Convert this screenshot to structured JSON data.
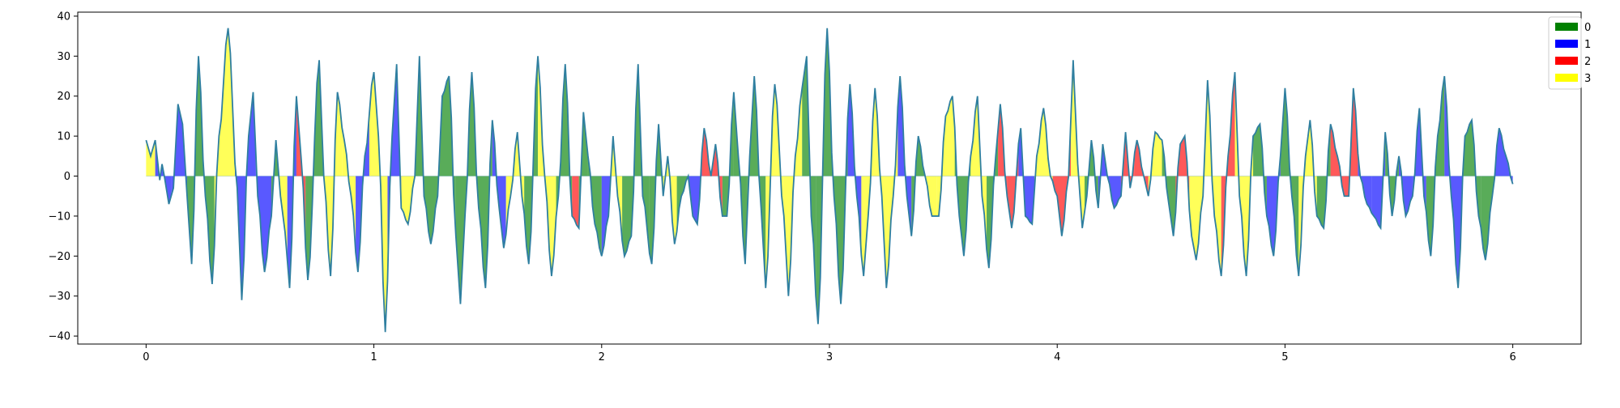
{
  "chart_data": {
    "type": "area",
    "title": "",
    "xlabel": "",
    "ylabel": "",
    "xlim": [
      -0.3,
      6.3
    ],
    "ylim": [
      -42,
      41
    ],
    "xticks": [
      0,
      1,
      2,
      3,
      4,
      5,
      6
    ],
    "yticks": [
      -40,
      -30,
      -20,
      -10,
      0,
      10,
      20,
      30,
      40
    ],
    "xtick_labels": [
      "0",
      "1",
      "2",
      "3",
      "4",
      "5",
      "6"
    ],
    "ytick_labels": [
      "−40",
      "−30",
      "−20",
      "−10",
      "0",
      "10",
      "20",
      "30",
      "40"
    ],
    "grid": false,
    "legend_position": "top-right",
    "line_color": "#2f7fa0",
    "fill_opacity": 0.65,
    "x_start": 0,
    "x_step": 0.01,
    "series": [
      {
        "name": "0",
        "color": "#008000"
      },
      {
        "name": "1",
        "color": "#0000ff"
      },
      {
        "name": "2",
        "color": "#ff0000"
      },
      {
        "name": "3",
        "color": "#ffff00"
      }
    ],
    "curve_peaks": [
      [
        0.0,
        9
      ],
      [
        0.02,
        5
      ],
      [
        0.04,
        9
      ],
      [
        0.06,
        -1
      ],
      [
        0.07,
        3
      ],
      [
        0.08,
        0
      ],
      [
        0.1,
        -7
      ],
      [
        0.12,
        -3
      ],
      [
        0.14,
        18
      ],
      [
        0.16,
        13
      ],
      [
        0.18,
        -5
      ],
      [
        0.2,
        -22
      ],
      [
        0.23,
        30
      ],
      [
        0.26,
        -5
      ],
      [
        0.29,
        -27
      ],
      [
        0.32,
        10
      ],
      [
        0.36,
        37
      ],
      [
        0.4,
        -3
      ],
      [
        0.42,
        -31
      ],
      [
        0.45,
        10
      ],
      [
        0.47,
        21
      ],
      [
        0.49,
        -5
      ],
      [
        0.52,
        -24
      ],
      [
        0.55,
        -10
      ],
      [
        0.57,
        9
      ],
      [
        0.59,
        -5
      ],
      [
        0.61,
        -14
      ],
      [
        0.63,
        -28
      ],
      [
        0.66,
        20
      ],
      [
        0.68,
        5
      ],
      [
        0.71,
        -26
      ],
      [
        0.76,
        29
      ],
      [
        0.78,
        0
      ],
      [
        0.81,
        -25
      ],
      [
        0.84,
        21
      ],
      [
        0.87,
        9
      ],
      [
        0.9,
        -5
      ],
      [
        0.93,
        -24
      ],
      [
        0.96,
        5
      ],
      [
        1.0,
        26
      ],
      [
        1.02,
        10
      ],
      [
        1.05,
        -39
      ],
      [
        1.08,
        10
      ],
      [
        1.1,
        28
      ],
      [
        1.12,
        -8
      ],
      [
        1.15,
        -12
      ],
      [
        1.18,
        0
      ],
      [
        1.2,
        30
      ],
      [
        1.22,
        -5
      ],
      [
        1.25,
        -17
      ],
      [
        1.28,
        -5
      ],
      [
        1.3,
        20
      ],
      [
        1.33,
        25
      ],
      [
        1.36,
        -15
      ],
      [
        1.38,
        -32
      ],
      [
        1.4,
        -10
      ],
      [
        1.43,
        26
      ],
      [
        1.46,
        -8
      ],
      [
        1.49,
        -28
      ],
      [
        1.52,
        14
      ],
      [
        1.55,
        -8
      ],
      [
        1.57,
        -18
      ],
      [
        1.6,
        -5
      ],
      [
        1.63,
        11
      ],
      [
        1.65,
        -5
      ],
      [
        1.68,
        -22
      ],
      [
        1.72,
        30
      ],
      [
        1.75,
        0
      ],
      [
        1.78,
        -25
      ],
      [
        1.81,
        -5
      ],
      [
        1.84,
        28
      ],
      [
        1.87,
        -10
      ],
      [
        1.9,
        -13
      ],
      [
        1.92,
        16
      ],
      [
        1.94,
        5
      ],
      [
        1.97,
        -12
      ],
      [
        2.0,
        -20
      ],
      [
        2.03,
        -10
      ],
      [
        2.05,
        10
      ],
      [
        2.07,
        -5
      ],
      [
        2.1,
        -20
      ],
      [
        2.13,
        -15
      ],
      [
        2.16,
        28
      ],
      [
        2.18,
        -5
      ],
      [
        2.22,
        -22
      ],
      [
        2.25,
        13
      ],
      [
        2.27,
        -5
      ],
      [
        2.29,
        5
      ],
      [
        2.32,
        -17
      ],
      [
        2.35,
        -5
      ],
      [
        2.38,
        0
      ],
      [
        2.4,
        -10
      ],
      [
        2.42,
        -12
      ],
      [
        2.45,
        12
      ],
      [
        2.48,
        0
      ],
      [
        2.5,
        8
      ],
      [
        2.53,
        -10
      ],
      [
        2.55,
        -10
      ],
      [
        2.58,
        21
      ],
      [
        2.6,
        5
      ],
      [
        2.63,
        -22
      ],
      [
        2.65,
        5
      ],
      [
        2.67,
        25
      ],
      [
        2.7,
        -8
      ],
      [
        2.72,
        -28
      ],
      [
        2.76,
        23
      ],
      [
        2.8,
        -10
      ],
      [
        2.82,
        -30
      ],
      [
        2.85,
        5
      ],
      [
        2.88,
        22
      ],
      [
        2.9,
        30
      ],
      [
        2.92,
        -10
      ],
      [
        2.95,
        -37
      ],
      [
        2.99,
        37
      ],
      [
        3.02,
        -5
      ],
      [
        3.05,
        -32
      ],
      [
        3.09,
        23
      ],
      [
        3.12,
        -5
      ],
      [
        3.15,
        -25
      ],
      [
        3.17,
        -10
      ],
      [
        3.2,
        22
      ],
      [
        3.23,
        -5
      ],
      [
        3.25,
        -28
      ],
      [
        3.28,
        -5
      ],
      [
        3.31,
        25
      ],
      [
        3.34,
        -5
      ],
      [
        3.36,
        -15
      ],
      [
        3.39,
        10
      ],
      [
        3.42,
        0
      ],
      [
        3.45,
        -10
      ],
      [
        3.48,
        -10
      ],
      [
        3.51,
        15
      ],
      [
        3.54,
        20
      ],
      [
        3.57,
        -10
      ],
      [
        3.59,
        -20
      ],
      [
        3.62,
        5
      ],
      [
        3.65,
        20
      ],
      [
        3.67,
        -5
      ],
      [
        3.7,
        -23
      ],
      [
        3.73,
        5
      ],
      [
        3.75,
        18
      ],
      [
        3.78,
        -5
      ],
      [
        3.8,
        -13
      ],
      [
        3.84,
        12
      ],
      [
        3.86,
        -10
      ],
      [
        3.89,
        -12
      ],
      [
        3.91,
        5
      ],
      [
        3.94,
        17
      ],
      [
        3.97,
        0
      ],
      [
        4.0,
        -5
      ],
      [
        4.02,
        -15
      ],
      [
        4.05,
        0
      ],
      [
        4.07,
        29
      ],
      [
        4.09,
        3
      ],
      [
        4.11,
        -13
      ],
      [
        4.13,
        -5
      ],
      [
        4.15,
        9
      ],
      [
        4.18,
        -8
      ],
      [
        4.2,
        8
      ],
      [
        4.22,
        0
      ],
      [
        4.25,
        -8
      ],
      [
        4.28,
        -5
      ],
      [
        4.3,
        11
      ],
      [
        4.32,
        -3
      ],
      [
        4.35,
        9
      ],
      [
        4.38,
        0
      ],
      [
        4.4,
        -5
      ],
      [
        4.43,
        11
      ],
      [
        4.46,
        9
      ],
      [
        4.49,
        -7
      ],
      [
        4.51,
        -15
      ],
      [
        4.54,
        8
      ],
      [
        4.56,
        10
      ],
      [
        4.59,
        -15
      ],
      [
        4.61,
        -21
      ],
      [
        4.64,
        -5
      ],
      [
        4.66,
        24
      ],
      [
        4.69,
        -10
      ],
      [
        4.72,
        -25
      ],
      [
        4.75,
        5
      ],
      [
        4.78,
        26
      ],
      [
        4.8,
        -5
      ],
      [
        4.83,
        -25
      ],
      [
        4.86,
        10
      ],
      [
        4.89,
        13
      ],
      [
        4.92,
        -10
      ],
      [
        4.95,
        -20
      ],
      [
        4.98,
        5
      ],
      [
        5.0,
        22
      ],
      [
        5.03,
        -5
      ],
      [
        5.06,
        -25
      ],
      [
        5.09,
        5
      ],
      [
        5.11,
        14
      ],
      [
        5.14,
        -10
      ],
      [
        5.17,
        -13
      ],
      [
        5.2,
        13
      ],
      [
        5.23,
        5
      ],
      [
        5.26,
        -5
      ],
      [
        5.28,
        -5
      ],
      [
        5.3,
        22
      ],
      [
        5.33,
        0
      ],
      [
        5.36,
        -7
      ],
      [
        5.39,
        -10
      ],
      [
        5.42,
        -13
      ],
      [
        5.44,
        11
      ],
      [
        5.47,
        -10
      ],
      [
        5.5,
        5
      ],
      [
        5.53,
        -10
      ],
      [
        5.56,
        -5
      ],
      [
        5.59,
        17
      ],
      [
        5.61,
        -5
      ],
      [
        5.64,
        -20
      ],
      [
        5.67,
        10
      ],
      [
        5.7,
        25
      ],
      [
        5.73,
        -5
      ],
      [
        5.76,
        -28
      ],
      [
        5.79,
        10
      ],
      [
        5.82,
        14
      ],
      [
        5.85,
        -10
      ],
      [
        5.88,
        -21
      ],
      [
        5.91,
        -5
      ],
      [
        5.94,
        12
      ],
      [
        5.97,
        5
      ],
      [
        6.0,
        -2
      ]
    ],
    "segments": [
      [
        0.0,
        0.04,
        3
      ],
      [
        0.04,
        0.11,
        1
      ],
      [
        0.11,
        0.18,
        1
      ],
      [
        0.18,
        0.3,
        0
      ],
      [
        0.3,
        0.39,
        3
      ],
      [
        0.39,
        0.48,
        1
      ],
      [
        0.48,
        0.55,
        1
      ],
      [
        0.55,
        0.58,
        0
      ],
      [
        0.58,
        0.62,
        3
      ],
      [
        0.62,
        0.66,
        1
      ],
      [
        0.66,
        0.7,
        2
      ],
      [
        0.7,
        0.78,
        0
      ],
      [
        0.78,
        0.86,
        3
      ],
      [
        0.86,
        0.92,
        3
      ],
      [
        0.92,
        0.98,
        1
      ],
      [
        0.98,
        1.06,
        3
      ],
      [
        1.06,
        1.12,
        1
      ],
      [
        1.12,
        1.18,
        3
      ],
      [
        1.18,
        1.27,
        0
      ],
      [
        1.27,
        1.36,
        0
      ],
      [
        1.36,
        1.45,
        0
      ],
      [
        1.45,
        1.52,
        0
      ],
      [
        1.52,
        1.58,
        1
      ],
      [
        1.58,
        1.66,
        3
      ],
      [
        1.66,
        1.72,
        0
      ],
      [
        1.72,
        1.8,
        3
      ],
      [
        1.8,
        1.87,
        0
      ],
      [
        1.87,
        1.9,
        2
      ],
      [
        1.9,
        1.94,
        0
      ],
      [
        1.94,
        2.0,
        0
      ],
      [
        2.0,
        2.04,
        1
      ],
      [
        2.04,
        2.09,
        3
      ],
      [
        2.09,
        2.15,
        0
      ],
      [
        2.15,
        2.21,
        0
      ],
      [
        2.21,
        2.27,
        0
      ],
      [
        2.27,
        2.33,
        3
      ],
      [
        2.33,
        2.38,
        0
      ],
      [
        2.38,
        2.44,
        1
      ],
      [
        2.44,
        2.53,
        2
      ],
      [
        2.53,
        2.58,
        0
      ],
      [
        2.58,
        2.64,
        0
      ],
      [
        2.64,
        2.72,
        0
      ],
      [
        2.72,
        2.8,
        3
      ],
      [
        2.8,
        2.88,
        3
      ],
      [
        2.88,
        2.94,
        0
      ],
      [
        2.94,
        3.0,
        0
      ],
      [
        3.0,
        3.08,
        0
      ],
      [
        3.08,
        3.14,
        1
      ],
      [
        3.14,
        3.22,
        3
      ],
      [
        3.22,
        3.3,
        3
      ],
      [
        3.3,
        3.36,
        1
      ],
      [
        3.36,
        3.42,
        0
      ],
      [
        3.42,
        3.47,
        3
      ],
      [
        3.47,
        3.55,
        3
      ],
      [
        3.55,
        3.62,
        0
      ],
      [
        3.62,
        3.69,
        3
      ],
      [
        3.69,
        3.74,
        0
      ],
      [
        3.74,
        3.78,
        2
      ],
      [
        3.78,
        3.83,
        2
      ],
      [
        3.83,
        3.9,
        1
      ],
      [
        3.9,
        3.98,
        3
      ],
      [
        3.98,
        4.06,
        2
      ],
      [
        4.06,
        4.12,
        3
      ],
      [
        4.12,
        4.18,
        0
      ],
      [
        4.18,
        4.28,
        1
      ],
      [
        4.28,
        4.34,
        2
      ],
      [
        4.34,
        4.4,
        2
      ],
      [
        4.4,
        4.46,
        3
      ],
      [
        4.46,
        4.52,
        0
      ],
      [
        4.52,
        4.58,
        2
      ],
      [
        4.58,
        4.65,
        3
      ],
      [
        4.65,
        4.72,
        3
      ],
      [
        4.72,
        4.78,
        2
      ],
      [
        4.78,
        4.86,
        3
      ],
      [
        4.86,
        4.92,
        0
      ],
      [
        4.92,
        4.98,
        1
      ],
      [
        4.98,
        5.06,
        0
      ],
      [
        5.06,
        5.14,
        3
      ],
      [
        5.14,
        5.2,
        0
      ],
      [
        5.2,
        5.26,
        2
      ],
      [
        5.26,
        5.32,
        2
      ],
      [
        5.32,
        5.38,
        1
      ],
      [
        5.38,
        5.44,
        1
      ],
      [
        5.44,
        5.5,
        0
      ],
      [
        5.5,
        5.56,
        1
      ],
      [
        5.56,
        5.62,
        1
      ],
      [
        5.62,
        5.7,
        0
      ],
      [
        5.7,
        5.78,
        1
      ],
      [
        5.78,
        5.86,
        0
      ],
      [
        5.86,
        5.92,
        0
      ],
      [
        5.92,
        6.0,
        1
      ]
    ]
  }
}
